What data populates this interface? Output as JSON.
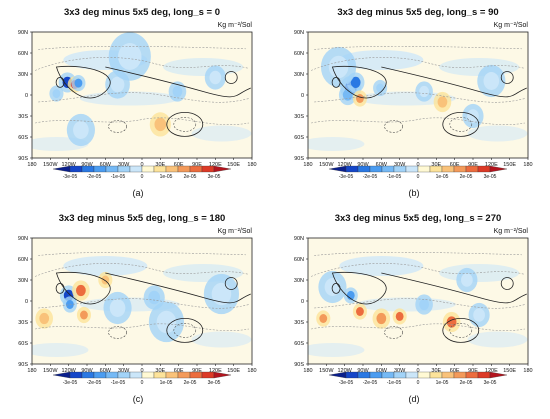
{
  "figure": {
    "panels": [
      {
        "label": "(a)",
        "title": "3x3 deg minus 5x5 deg, long_s = 0",
        "units": "Kg m⁻²/Sol"
      },
      {
        "label": "(b)",
        "title": "3x3 deg minus 5x5 deg, long_s = 90",
        "units": "Kg m⁻²/Sol"
      },
      {
        "label": "(c)",
        "title": "3x3 deg minus 5x5 deg, long_s = 180",
        "units": "Kg m⁻²/Sol"
      },
      {
        "label": "(d)",
        "title": "3x3 deg minus 5x5 deg, long_s = 270",
        "units": "Kg m⁻²/Sol"
      }
    ]
  },
  "chart_data": {
    "type": "heatmap",
    "x_ticks": [
      "180",
      "150W",
      "120W",
      "90W",
      "60W",
      "30W",
      "0",
      "30E",
      "60E",
      "90E",
      "120E",
      "150E",
      "180"
    ],
    "y_ticks": [
      "90N",
      "60N",
      "30N",
      "0",
      "30S",
      "60S",
      "90S"
    ],
    "xlim": [
      -180,
      180
    ],
    "ylim": [
      -90,
      90
    ],
    "colorbar": {
      "labels": [
        "-3e-05",
        "-2e-05",
        "-1e-05",
        "0",
        "1e-05",
        "2e-05",
        "3e-05"
      ],
      "bins": [
        -3.5e-05,
        -3e-05,
        -2.5e-05,
        -2e-05,
        -1.5e-05,
        -1e-05,
        -5e-06,
        0,
        5e-06,
        1e-05,
        1.5e-05,
        2e-05,
        2.5e-05,
        3e-05,
        3.5e-05
      ],
      "colors": [
        "#0a1f8c",
        "#1546c8",
        "#2a78e3",
        "#4b9cf0",
        "#75b9f5",
        "#a2d3f8",
        "#cbe6f9",
        "#fff9d4",
        "#fde39a",
        "#f9c27a",
        "#f39a5a",
        "#ec6c3e",
        "#dc3a27",
        "#b3141e"
      ]
    },
    "blobs": [
      [
        {
          "lon": -122,
          "lat": 18,
          "r": 5,
          "v": -3e-05
        },
        {
          "lon": -110,
          "lat": 15,
          "r": 4,
          "v": 2.5e-05
        },
        {
          "lon": -104,
          "lat": 17,
          "r": 4,
          "v": -2e-05
        },
        {
          "lon": -140,
          "lat": 2,
          "r": 4,
          "v": -1e-05
        },
        {
          "lon": -40,
          "lat": 15,
          "r": 7,
          "v": -5e-06
        },
        {
          "lon": 58,
          "lat": 5,
          "r": 5,
          "v": -1e-05
        },
        {
          "lon": 120,
          "lat": 25,
          "r": 6,
          "v": -5e-06
        },
        {
          "lon": -20,
          "lat": 55,
          "r": 12,
          "v": -5e-06
        },
        {
          "lon": 30,
          "lat": -42,
          "r": 6,
          "v": 1e-05
        },
        {
          "lon": -100,
          "lat": -50,
          "r": 8,
          "v": -5e-06
        }
      ],
      [
        {
          "lon": -110,
          "lat": 10,
          "r": 6,
          "v": -3e-05
        },
        {
          "lon": -102,
          "lat": 18,
          "r": 5,
          "v": -2.5e-05
        },
        {
          "lon": -115,
          "lat": 0,
          "r": 5,
          "v": -1.5e-05
        },
        {
          "lon": -95,
          "lat": -5,
          "r": 4,
          "v": 1.5e-05
        },
        {
          "lon": -62,
          "lat": 10,
          "r": 4,
          "v": -1e-05
        },
        {
          "lon": 10,
          "lat": 5,
          "r": 5,
          "v": -5e-06
        },
        {
          "lon": 40,
          "lat": -10,
          "r": 5,
          "v": 1e-05
        },
        {
          "lon": 120,
          "lat": 20,
          "r": 8,
          "v": -5e-06
        },
        {
          "lon": -130,
          "lat": 40,
          "r": 10,
          "v": -5e-06
        },
        {
          "lon": 90,
          "lat": -30,
          "r": 6,
          "v": -5e-06
        }
      ],
      [
        {
          "lon": -120,
          "lat": 8,
          "r": 5,
          "v": -3e-05
        },
        {
          "lon": -118,
          "lat": -5,
          "r": 4,
          "v": -2e-05
        },
        {
          "lon": -100,
          "lat": 15,
          "r": 5,
          "v": 2e-05
        },
        {
          "lon": -95,
          "lat": -20,
          "r": 4,
          "v": 1.5e-05
        },
        {
          "lon": -60,
          "lat": 30,
          "r": 4,
          "v": 1e-05
        },
        {
          "lon": 20,
          "lat": 5,
          "r": 6,
          "v": -1e-05
        },
        {
          "lon": -160,
          "lat": -25,
          "r": 5,
          "v": 1e-05
        },
        {
          "lon": 40,
          "lat": -30,
          "r": 10,
          "v": -5e-06
        },
        {
          "lon": 130,
          "lat": 10,
          "r": 10,
          "v": -5e-06
        },
        {
          "lon": -40,
          "lat": -10,
          "r": 8,
          "v": -5e-06
        }
      ],
      [
        {
          "lon": -110,
          "lat": 8,
          "r": 4,
          "v": -2e-05
        },
        {
          "lon": -95,
          "lat": -15,
          "r": 4,
          "v": 2e-05
        },
        {
          "lon": -60,
          "lat": -25,
          "r": 5,
          "v": 1.5e-05
        },
        {
          "lon": -30,
          "lat": -22,
          "r": 4,
          "v": 2e-05
        },
        {
          "lon": 55,
          "lat": -30,
          "r": 5,
          "v": 2e-05
        },
        {
          "lon": -155,
          "lat": -25,
          "r": 4,
          "v": 1.5e-05
        },
        {
          "lon": 10,
          "lat": -5,
          "r": 5,
          "v": -1e-05
        },
        {
          "lon": 100,
          "lat": -20,
          "r": 6,
          "v": -5e-06
        },
        {
          "lon": -140,
          "lat": 20,
          "r": 8,
          "v": -5e-06
        },
        {
          "lon": 80,
          "lat": 30,
          "r": 6,
          "v": -5e-06
        }
      ]
    ]
  }
}
